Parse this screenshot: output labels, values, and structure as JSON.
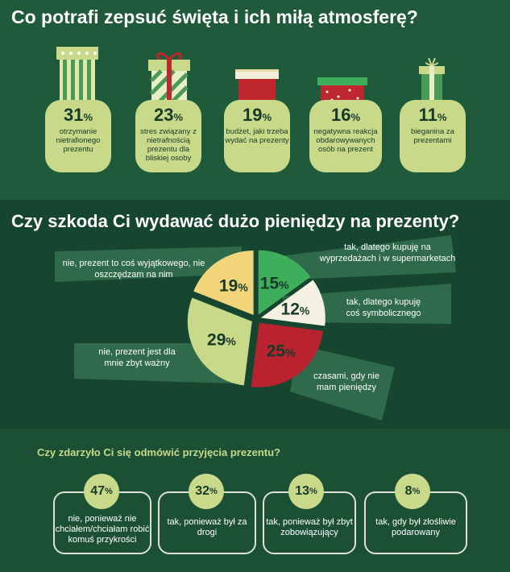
{
  "section1": {
    "title": "Co potrafi zepsuć święta i ich miłą atmosferę?",
    "items": [
      {
        "value": "31",
        "unit": "%",
        "text": "otrzymanie nietrafionego prezentu"
      },
      {
        "value": "23",
        "unit": "%",
        "text": "stres związany z nietrafnością prezentu dla bliskiej osoby"
      },
      {
        "value": "19",
        "unit": "%",
        "text": "budżet, jaki trzeba wydać na prezenty"
      },
      {
        "value": "16",
        "unit": "%",
        "text": "negatywna reakcja obdarowywanych osób na prezent"
      },
      {
        "value": "11",
        "unit": "%",
        "text": "bieganina za prezentami"
      }
    ]
  },
  "section2": {
    "title": "Czy szkoda Ci wydawać dużo pieniędzy na prezenty?",
    "labels": {
      "s15": "tak, dlatego kupuję na wyprzedażach i w supermarketach",
      "s12": "tak, dlatego kupuję coś symbolicznego",
      "s25": "czasami, gdy nie mam pieniędzy",
      "s29": "nie, prezent jest dla mnie zbyt ważny",
      "s19": "nie, prezent to coś wyjątkowego, nie oszczędzam na nim"
    }
  },
  "section3": {
    "title": "Czy zdarzyło Ci się odmówić przyjęcia prezentu?",
    "items": [
      {
        "value": "47",
        "unit": "%",
        "text": "nie, ponieważ nie chciałem/chciałam robić komuś przykrości"
      },
      {
        "value": "32",
        "unit": "%",
        "text": "tak, ponieważ był za drogi"
      },
      {
        "value": "13",
        "unit": "%",
        "text": "tak, ponieważ był zbyt zobowiązujący"
      },
      {
        "value": "8",
        "unit": "%",
        "text": "tak, gdy był złośliwie podarowany"
      }
    ]
  },
  "chart_data": [
    {
      "type": "bar",
      "title": "Co potrafi zepsuć święta i ich miłą atmosferę?",
      "categories": [
        "otrzymanie nietrafionego prezentu",
        "stres związany z nietrafnością prezentu dla bliskiej osoby",
        "budżet, jaki trzeba wydać na prezenty",
        "negatywna reakcja obdarowywanych osób na prezent",
        "bieganina za prezentami"
      ],
      "values": [
        31,
        23,
        19,
        16,
        11
      ]
    },
    {
      "type": "pie",
      "title": "Czy szkoda Ci wydawać dużo pieniędzy na prezenty?",
      "categories": [
        "tak, dlatego kupuję na wyprzedażach i w supermarketach",
        "tak, dlatego kupuję coś symbolicznego",
        "czasami, gdy nie mam pieniędzy",
        "nie, prezent jest dla mnie zbyt ważny",
        "nie, prezent to coś wyjątkowego, nie oszczędzam na nim"
      ],
      "values": [
        15,
        12,
        25,
        29,
        19
      ],
      "colors": [
        "#3fae5a",
        "#f4f1e2",
        "#b8232f",
        "#c8d98a",
        "#f2d57a"
      ]
    },
    {
      "type": "bar",
      "title": "Czy zdarzyło Ci się odmówić przyjęcia prezentu?",
      "categories": [
        "nie, ponieważ nie chciałem/chciałam robić komuś przykrości",
        "tak, ponieważ był za drogi",
        "tak, ponieważ był zbyt zobowiązujący",
        "tak, gdy był złośliwie podarowany"
      ],
      "values": [
        47,
        32,
        13,
        8
      ]
    }
  ]
}
